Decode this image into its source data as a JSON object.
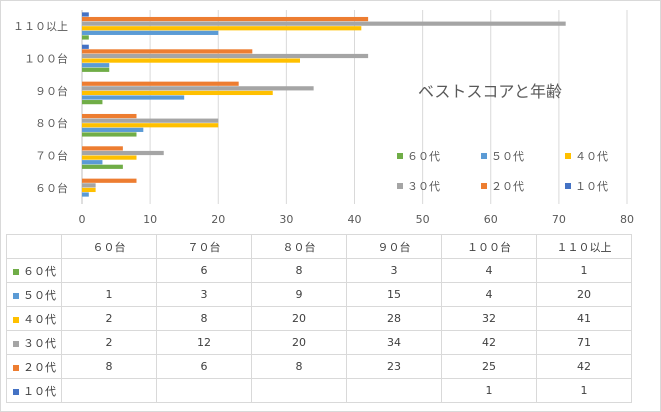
{
  "chart_data": {
    "type": "bar",
    "orientation": "horizontal",
    "title": "ベストスコアと年齢",
    "categories": [
      "６０台",
      "７０台",
      "８０台",
      "９０台",
      "１００台",
      "１１０以上"
    ],
    "xlim": [
      0,
      80
    ],
    "xticks": [
      "0",
      "10",
      "20",
      "30",
      "40",
      "50",
      "60",
      "70",
      "80"
    ],
    "grid": true,
    "legend_position": "right",
    "series": [
      {
        "name": "６０代",
        "color": "#70ad47",
        "values": [
          null,
          6,
          8,
          3,
          4,
          1
        ]
      },
      {
        "name": "５０代",
        "color": "#5b9bd5",
        "values": [
          1,
          3,
          9,
          15,
          4,
          20
        ]
      },
      {
        "name": "４０代",
        "color": "#ffc000",
        "values": [
          2,
          8,
          20,
          28,
          32,
          41
        ]
      },
      {
        "name": "３０代",
        "color": "#a5a5a5",
        "values": [
          2,
          12,
          20,
          34,
          42,
          71
        ]
      },
      {
        "name": "２０代",
        "color": "#ed7d31",
        "values": [
          8,
          6,
          8,
          23,
          25,
          42
        ]
      },
      {
        "name": "１０代",
        "color": "#4472c4",
        "values": [
          null,
          null,
          null,
          null,
          1,
          1
        ]
      }
    ]
  }
}
